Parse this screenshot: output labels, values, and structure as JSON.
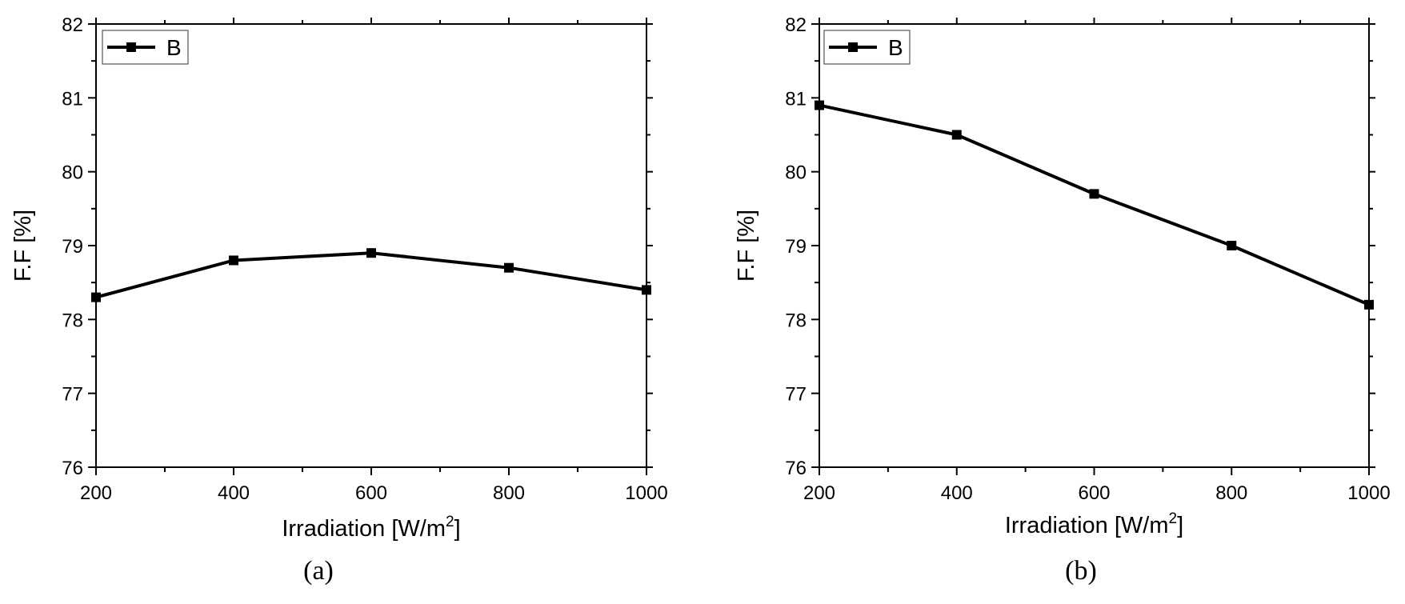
{
  "chart_data": [
    {
      "type": "line",
      "caption": "(a)",
      "x": [
        200,
        400,
        600,
        800,
        1000
      ],
      "series": [
        {
          "name": "B",
          "values": [
            78.3,
            78.8,
            78.9,
            78.7,
            78.4
          ]
        }
      ],
      "xlabel": "Irradiation [W/m",
      "xlabel_sup": "2",
      "xlabel_end": "]",
      "ylabel": "F.F [%]",
      "xlim": [
        200,
        1000
      ],
      "ylim": [
        76,
        82
      ],
      "xticks": [
        "200",
        "400",
        "600",
        "800",
        "1000"
      ],
      "yticks": [
        "76",
        "77",
        "78",
        "79",
        "80",
        "81",
        "82"
      ],
      "grid": false,
      "legend": "top-left",
      "line_color": "#000000"
    },
    {
      "type": "line",
      "caption": "(b)",
      "x": [
        200,
        400,
        600,
        800,
        1000
      ],
      "series": [
        {
          "name": "B",
          "values": [
            80.9,
            80.5,
            79.7,
            79.0,
            78.2
          ]
        }
      ],
      "xlabel": "Irradiation [W/m",
      "xlabel_sup": "2",
      "xlabel_end": "]",
      "ylabel": "F.F [%]",
      "xlim": [
        200,
        1000
      ],
      "ylim": [
        76,
        82
      ],
      "xticks": [
        "200",
        "400",
        "600",
        "800",
        "1000"
      ],
      "yticks": [
        "76",
        "77",
        "78",
        "79",
        "80",
        "81",
        "82"
      ],
      "grid": false,
      "legend": "top-left",
      "line_color": "#000000"
    }
  ]
}
